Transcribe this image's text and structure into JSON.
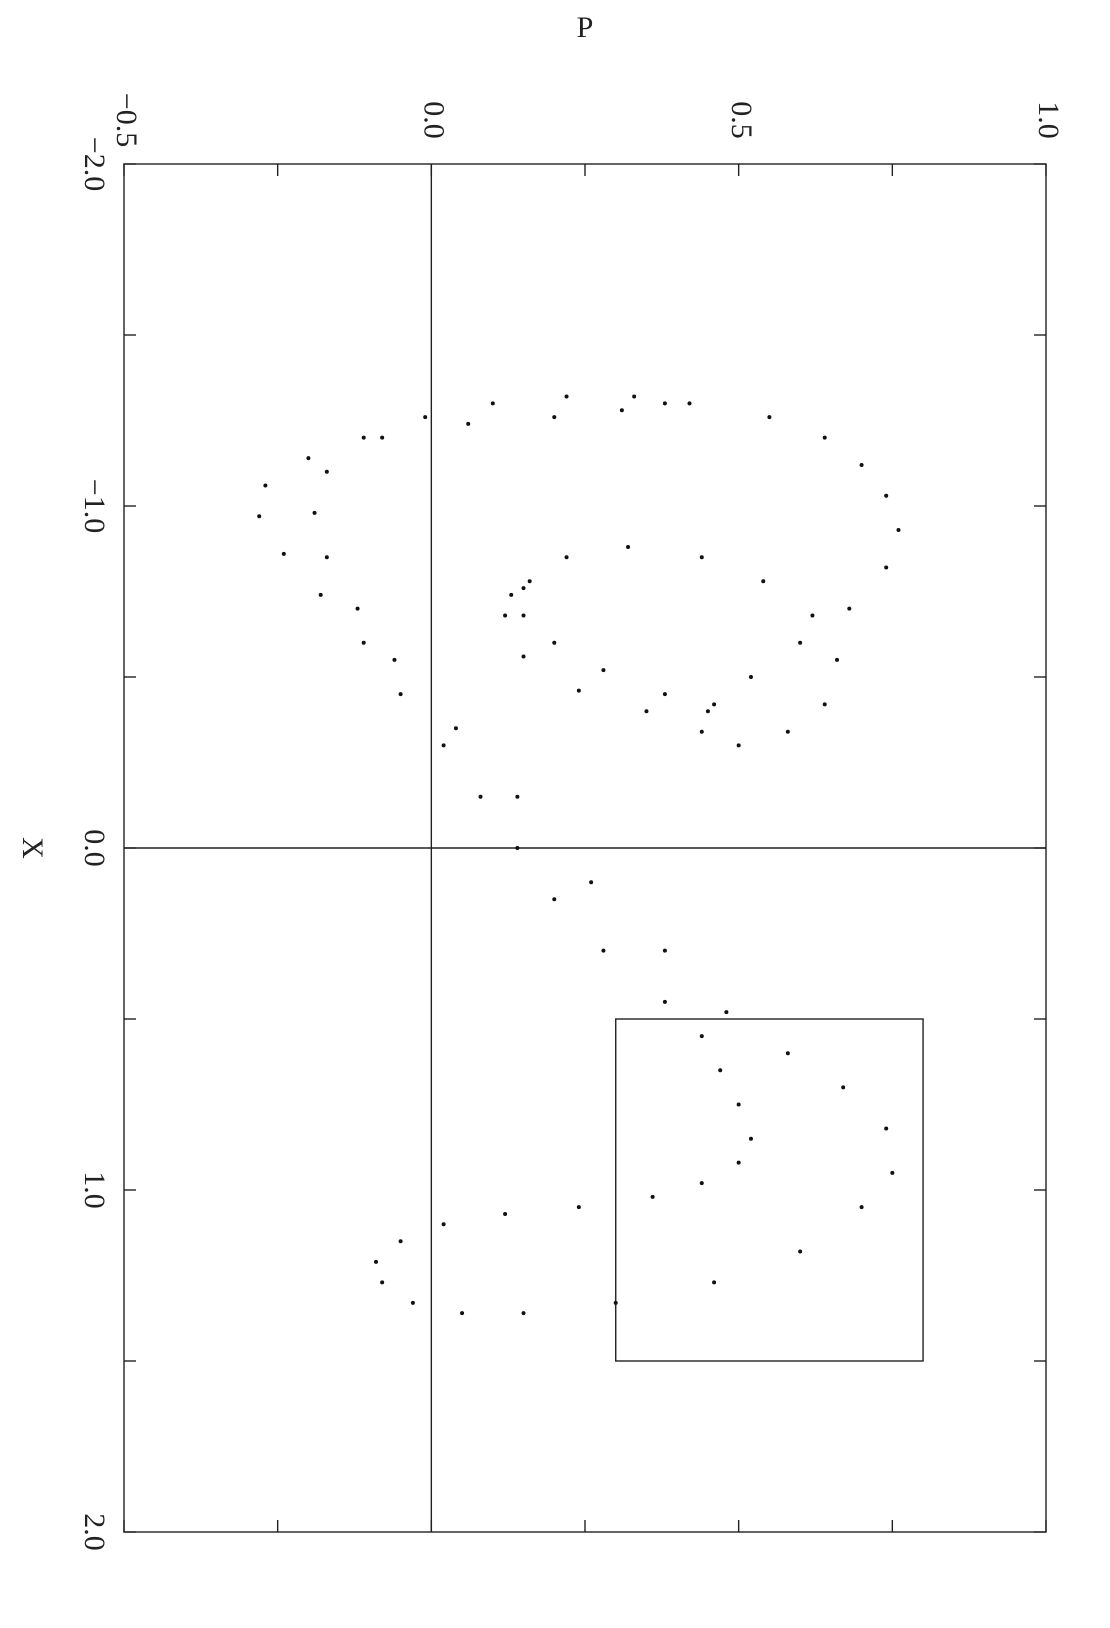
{
  "chart_data": {
    "type": "scatter",
    "title": "",
    "xlabel": "X",
    "ylabel": "P",
    "xlim": [
      -2.0,
      2.0
    ],
    "ylim": [
      -0.5,
      1.0
    ],
    "x_ticks": [
      -2.0,
      -1.5,
      -1.0,
      -0.5,
      0.0,
      0.5,
      1.0,
      1.5,
      2.0
    ],
    "x_tick_labels": [
      "−2.0",
      "",
      "−1.0",
      "",
      "0.0",
      "",
      "1.0",
      "",
      "2.0"
    ],
    "y_ticks": [
      -0.5,
      -0.25,
      0.0,
      0.25,
      0.5,
      0.75,
      1.0
    ],
    "y_tick_labels": [
      "−0.5",
      "",
      "0.0",
      "",
      "0.5",
      "",
      "1.0"
    ],
    "reference_lines": {
      "x": 0.0,
      "y": 0.0
    },
    "inset_box": {
      "x": [
        0.5,
        1.5
      ],
      "y": [
        0.3,
        0.8
      ]
    },
    "orientation": "rotated 90° clockwise",
    "grid": false,
    "point_color": "#111111",
    "series": [
      {
        "values": [
          [
            -1.3,
            0.38
          ],
          [
            -1.28,
            0.31
          ],
          [
            -1.26,
            0.2
          ],
          [
            -1.24,
            0.06
          ],
          [
            -1.2,
            -0.08
          ],
          [
            -1.14,
            -0.2
          ],
          [
            -1.06,
            -0.27
          ],
          [
            -0.97,
            -0.28
          ],
          [
            -0.86,
            -0.24
          ],
          [
            -0.74,
            -0.18
          ],
          [
            -0.6,
            -0.11
          ],
          [
            -0.45,
            -0.05
          ],
          [
            -0.3,
            0.02
          ],
          [
            -0.15,
            0.08
          ],
          [
            0.0,
            0.14
          ],
          [
            0.15,
            0.2
          ],
          [
            0.3,
            0.28
          ],
          [
            0.45,
            0.38
          ],
          [
            0.55,
            0.44
          ],
          [
            0.65,
            0.47
          ],
          [
            0.75,
            0.5
          ],
          [
            0.85,
            0.52
          ],
          [
            0.92,
            0.5
          ],
          [
            0.98,
            0.44
          ],
          [
            1.02,
            0.36
          ],
          [
            1.05,
            0.24
          ],
          [
            1.07,
            0.12
          ],
          [
            1.1,
            0.02
          ],
          [
            1.15,
            -0.05
          ],
          [
            1.21,
            -0.09
          ],
          [
            1.27,
            -0.08
          ],
          [
            1.33,
            -0.03
          ],
          [
            1.36,
            0.05
          ],
          [
            1.36,
            0.15
          ],
          [
            1.33,
            0.3
          ],
          [
            1.27,
            0.46
          ],
          [
            1.18,
            0.6
          ],
          [
            1.05,
            0.7
          ],
          [
            0.95,
            0.75
          ],
          [
            0.82,
            0.74
          ],
          [
            0.7,
            0.67
          ],
          [
            0.6,
            0.58
          ],
          [
            0.48,
            0.48
          ],
          [
            0.3,
            0.38
          ],
          [
            0.1,
            0.26
          ],
          [
            -0.15,
            0.14
          ],
          [
            -0.35,
            0.04
          ],
          [
            -0.55,
            -0.06
          ],
          [
            -0.7,
            -0.12
          ],
          [
            -0.85,
            -0.17
          ],
          [
            -0.98,
            -0.19
          ],
          [
            -1.1,
            -0.17
          ],
          [
            -1.2,
            -0.11
          ],
          [
            -1.26,
            -0.01
          ],
          [
            -1.3,
            0.1
          ],
          [
            -1.32,
            0.22
          ],
          [
            -1.32,
            0.33
          ],
          [
            -1.3,
            0.42
          ],
          [
            -1.26,
            0.55
          ],
          [
            -1.2,
            0.64
          ],
          [
            -1.12,
            0.7
          ],
          [
            -1.03,
            0.74
          ],
          [
            -0.93,
            0.76
          ],
          [
            -0.82,
            0.74
          ],
          [
            -0.7,
            0.68
          ],
          [
            -0.6,
            0.6
          ],
          [
            -0.5,
            0.52
          ],
          [
            -0.42,
            0.46
          ],
          [
            -0.34,
            0.44
          ],
          [
            -0.3,
            0.5
          ],
          [
            -0.34,
            0.58
          ],
          [
            -0.42,
            0.64
          ],
          [
            -0.55,
            0.66
          ],
          [
            -0.68,
            0.62
          ],
          [
            -0.78,
            0.54
          ],
          [
            -0.85,
            0.44
          ],
          [
            -0.88,
            0.32
          ],
          [
            -0.85,
            0.22
          ],
          [
            -0.78,
            0.16
          ],
          [
            -0.68,
            0.12
          ],
          [
            -0.56,
            0.15
          ],
          [
            -0.46,
            0.24
          ],
          [
            -0.4,
            0.35
          ],
          [
            -0.4,
            0.45
          ],
          [
            -0.45,
            0.38
          ],
          [
            -0.52,
            0.28
          ],
          [
            -0.6,
            0.2
          ],
          [
            -0.68,
            0.15
          ],
          [
            -0.74,
            0.13
          ],
          [
            -0.76,
            0.15
          ]
        ]
      }
    ]
  }
}
